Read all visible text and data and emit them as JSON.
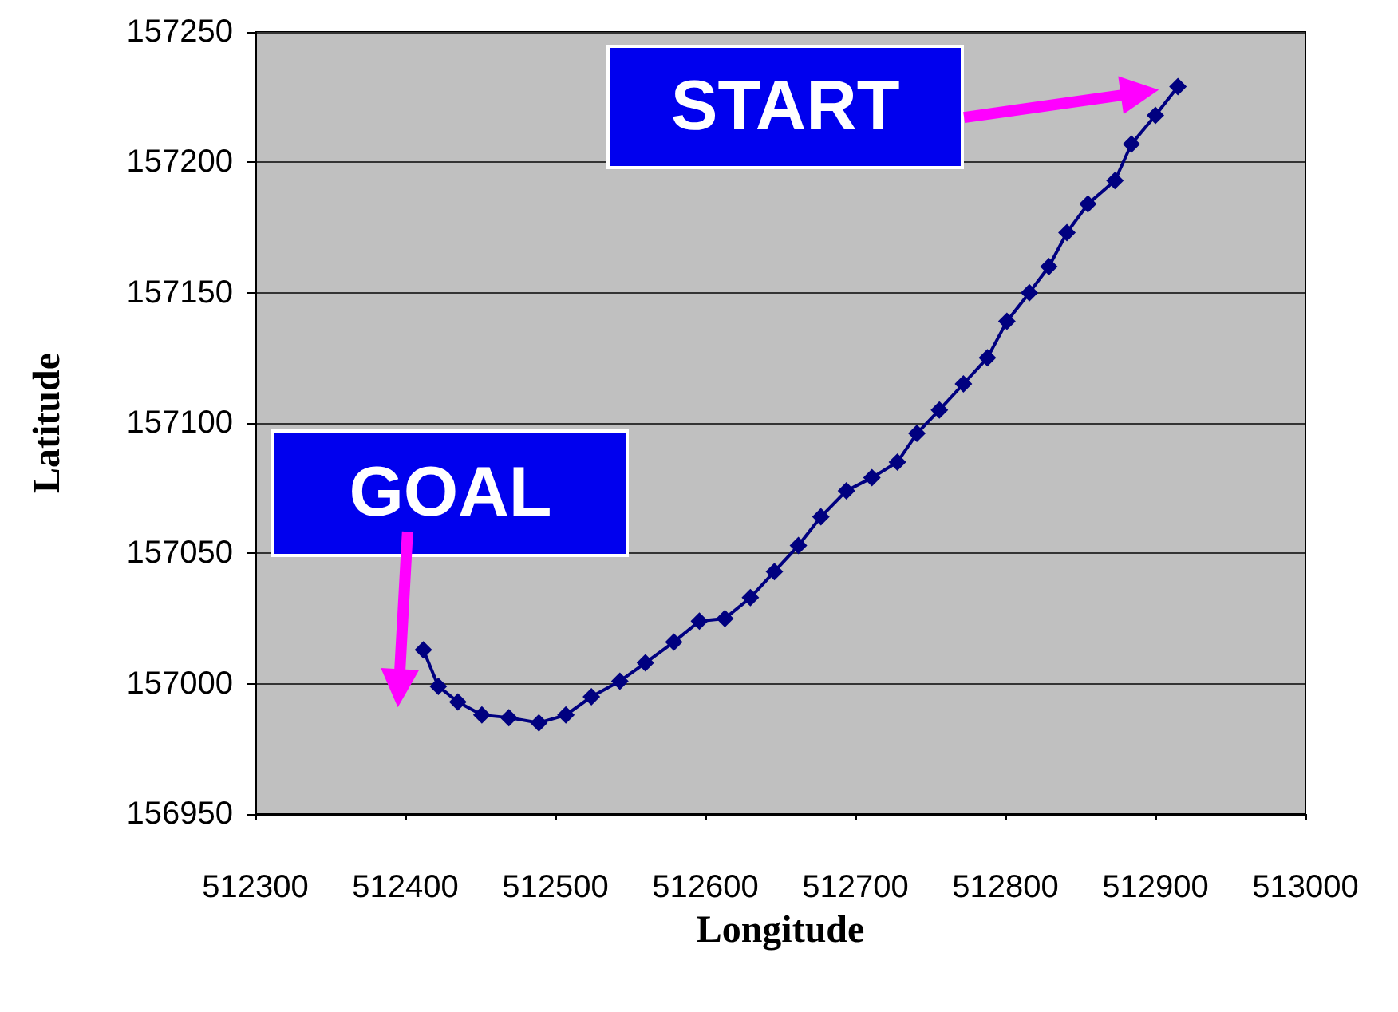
{
  "chart_data": {
    "type": "line",
    "xlabel": "Longitude",
    "ylabel": "Latitude",
    "x": [
      512412,
      512422,
      512435,
      512451,
      512469,
      512489,
      512507,
      512524,
      512543,
      512560,
      512579,
      512596,
      512613,
      512630,
      512646,
      512662,
      512677,
      512694,
      512711,
      512728,
      512741,
      512756,
      512772,
      512788,
      512801,
      512816,
      512829,
      512841,
      512855,
      512873,
      512884,
      512900,
      512915
    ],
    "series": [
      {
        "color": "#000080",
        "values": [
          157013,
          156999,
          156993,
          156988,
          156987,
          156985,
          156988,
          156995,
          157001,
          157008,
          157016,
          157024,
          157025,
          157033,
          157043,
          157053,
          157064,
          157074,
          157079,
          157085,
          157096,
          157105,
          157115,
          157125,
          157139,
          157150,
          157160,
          157173,
          157184,
          157193,
          157207,
          157218,
          157229
        ]
      }
    ],
    "xlim": [
      512300,
      513000
    ],
    "xticks": [
      512300,
      512400,
      512500,
      512600,
      512700,
      512800,
      512900,
      513000
    ],
    "ylim": [
      156950,
      157250
    ],
    "yticks": [
      156950,
      157000,
      157050,
      157100,
      157150,
      157200,
      157250
    ],
    "grid": "y",
    "marker": "diamond",
    "line_style": "solid",
    "annotations": [
      "START",
      "GOAL"
    ]
  }
}
